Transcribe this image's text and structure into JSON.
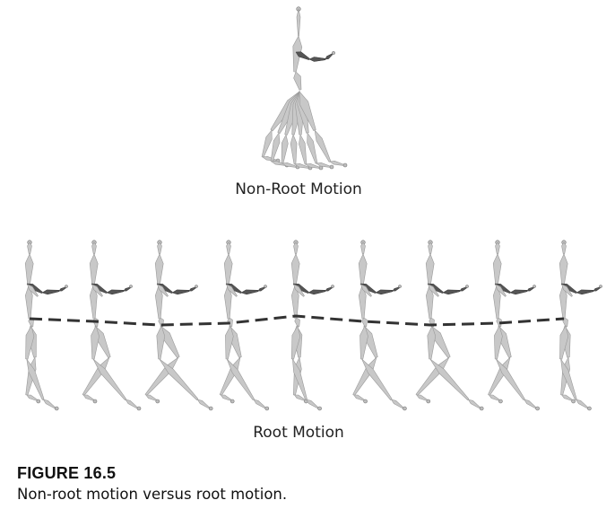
{
  "figure": {
    "top_label": "Non-Root Motion",
    "bottom_label": "Root Motion",
    "number": "FIGURE 16.5",
    "caption": "Non-root motion versus root motion."
  },
  "colors": {
    "bone": "#c8c8c8",
    "bone_dark": "#555555",
    "root_path": "#333333"
  }
}
